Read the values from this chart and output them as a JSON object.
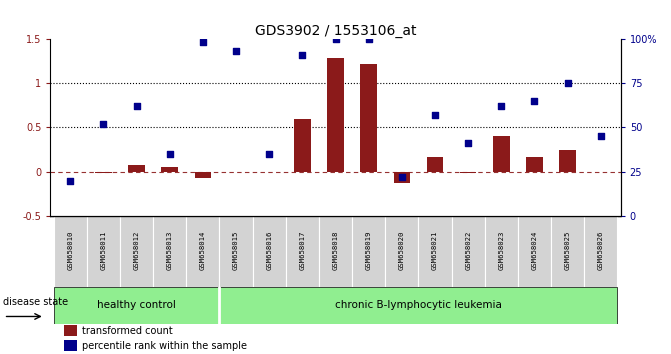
{
  "title": "GDS3902 / 1553106_at",
  "samples": [
    "GSM658010",
    "GSM658011",
    "GSM658012",
    "GSM658013",
    "GSM658014",
    "GSM658015",
    "GSM658016",
    "GSM658017",
    "GSM658018",
    "GSM658019",
    "GSM658020",
    "GSM658021",
    "GSM658022",
    "GSM658023",
    "GSM658024",
    "GSM658025",
    "GSM658026"
  ],
  "transformed_count": [
    0.0,
    -0.01,
    0.08,
    0.05,
    -0.07,
    0.0,
    0.0,
    0.6,
    1.28,
    1.22,
    -0.13,
    0.17,
    -0.01,
    0.4,
    0.17,
    0.25,
    0.0
  ],
  "percentile_rank_pct": [
    20,
    52,
    62,
    35,
    98,
    93,
    35,
    91,
    100,
    100,
    22,
    57,
    41,
    62,
    65,
    75,
    45
  ],
  "bar_color": "#8B1A1A",
  "dot_color": "#00008B",
  "left_ylim": [
    -0.5,
    1.5
  ],
  "right_ylim": [
    0,
    100
  ],
  "left_yticks": [
    -0.5,
    0.0,
    0.5,
    1.0,
    1.5
  ],
  "left_yticklabels": [
    "-0.5",
    "0",
    "0.5",
    "1",
    "1.5"
  ],
  "right_yticks": [
    0,
    25,
    50,
    75,
    100
  ],
  "right_yticklabels": [
    "0",
    "25",
    "50",
    "75",
    "100%"
  ],
  "hline_dotted": [
    0.5,
    1.0
  ],
  "hline_dashed": 0.0,
  "healthy_control_count": 5,
  "group_labels": [
    "healthy control",
    "chronic B-lymphocytic leukemia"
  ],
  "disease_state_label": "disease state",
  "legend_bar_label": "transformed count",
  "legend_dot_label": "percentile rank within the sample",
  "tick_area_color": "#D3D3D3",
  "group_color": "#6EBF6E",
  "bar_width": 0.5,
  "title_fontsize": 10
}
